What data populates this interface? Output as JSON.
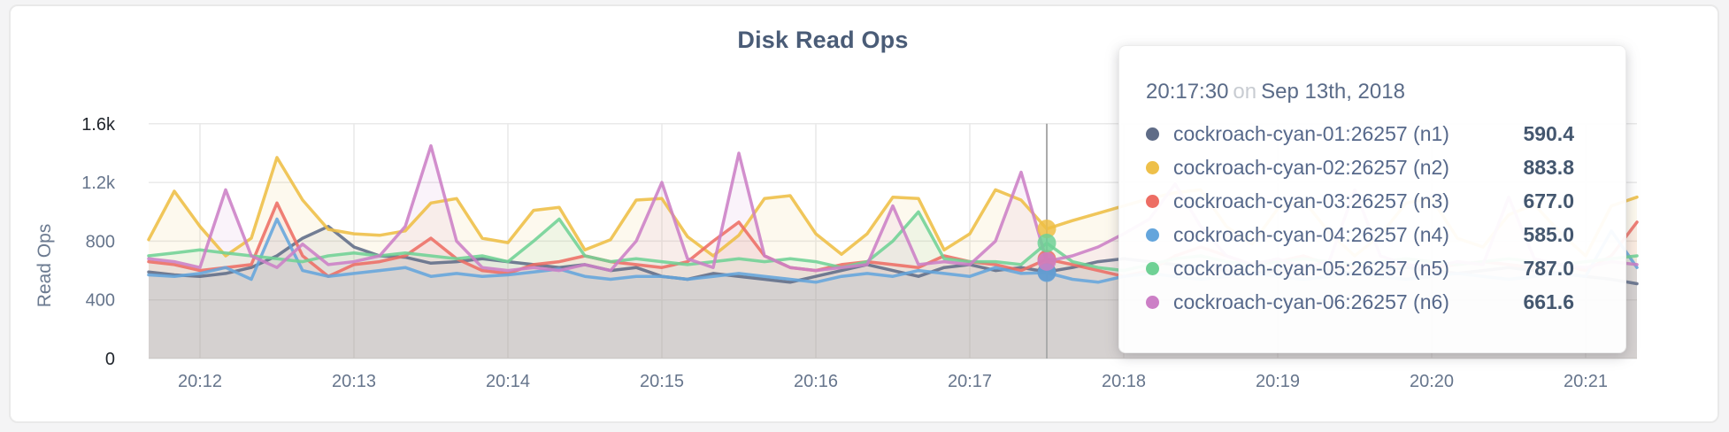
{
  "page": {
    "background": "#F4F4F5"
  },
  "card": {
    "background": "#FFFFFF",
    "border_color": "#E9E9E9"
  },
  "title": "Disk Read Ops",
  "tooltip": {
    "time": "20:17:30",
    "separator": "on",
    "date": "Sep 13th, 2018",
    "rows": [
      {
        "label": "cockroach-cyan-01:26257 (n1)",
        "value": "590.4",
        "color": "#5F6C87"
      },
      {
        "label": "cockroach-cyan-02:26257 (n2)",
        "value": "883.8",
        "color": "#EEC04A"
      },
      {
        "label": "cockroach-cyan-03:26257 (n3)",
        "value": "677.0",
        "color": "#ED6D64"
      },
      {
        "label": "cockroach-cyan-04:26257 (n4)",
        "value": "585.0",
        "color": "#64A5DC"
      },
      {
        "label": "cockroach-cyan-05:26257 (n5)",
        "value": "787.0",
        "color": "#6FD195"
      },
      {
        "label": "cockroach-cyan-06:26257 (n6)",
        "value": "661.6",
        "color": "#CC7FC6"
      }
    ]
  },
  "chart_data": {
    "type": "line",
    "title": "Disk Read Ops",
    "xlabel": "",
    "ylabel": "Read Ops",
    "ylim": [
      0,
      1600
    ],
    "grid": true,
    "x_start_time": "20:11:40",
    "x_step_seconds": 10,
    "x_ticks": [
      {
        "label": "20:12",
        "index": 2
      },
      {
        "label": "20:13",
        "index": 8
      },
      {
        "label": "20:14",
        "index": 14
      },
      {
        "label": "20:15",
        "index": 20
      },
      {
        "label": "20:16",
        "index": 26
      },
      {
        "label": "20:17",
        "index": 32
      },
      {
        "label": "20:18",
        "index": 38
      },
      {
        "label": "20:19",
        "index": 44
      },
      {
        "label": "20:20",
        "index": 50
      },
      {
        "label": "20:21",
        "index": 56
      }
    ],
    "y_ticks": [
      {
        "label": "0",
        "value": 0,
        "strong": true
      },
      {
        "label": "400",
        "value": 400,
        "strong": false
      },
      {
        "label": "800",
        "value": 800,
        "strong": false
      },
      {
        "label": "1.2k",
        "value": 1200,
        "strong": false
      },
      {
        "label": "1.6k",
        "value": 1600,
        "strong": true
      }
    ],
    "crosshair": {
      "index": 35,
      "time": "20:17:30",
      "color": "#ABABAB"
    },
    "tick_color": "#66758C",
    "tick_strong_color": "#20252C",
    "gridline_color": "#E9E9E9",
    "series": [
      {
        "name": "cockroach-cyan-01:26257 (n1)",
        "color": "#5F6C87",
        "values": [
          590,
          570,
          560,
          580,
          620,
          700,
          820,
          900,
          760,
          700,
          690,
          650,
          660,
          680,
          660,
          640,
          620,
          640,
          600,
          620,
          560,
          540,
          580,
          560,
          540,
          520,
          560,
          600,
          640,
          600,
          560,
          620,
          640,
          600,
          620,
          590.4,
          620,
          660,
          680,
          660,
          640,
          620,
          600,
          580,
          600,
          620,
          600,
          580,
          600,
          620,
          600,
          580,
          600,
          620,
          600,
          580,
          560,
          540,
          510
        ]
      },
      {
        "name": "cockroach-cyan-02:26257 (n2)",
        "color": "#EEBE44",
        "values": [
          810,
          1140,
          900,
          700,
          820,
          1370,
          1080,
          880,
          850,
          840,
          870,
          1060,
          1090,
          820,
          790,
          1010,
          1030,
          740,
          810,
          1080,
          1090,
          830,
          700,
          840,
          1090,
          1110,
          850,
          710,
          850,
          1100,
          1090,
          740,
          850,
          1150,
          1080,
          883.8,
          940,
          990,
          1040,
          1090,
          1130,
          1150,
          900,
          780,
          1020,
          1080,
          860,
          700,
          840,
          1060,
          1090,
          820,
          760,
          980,
          1050,
          860,
          700,
          1040,
          1100
        ]
      },
      {
        "name": "cockroach-cyan-03:26257 (n3)",
        "color": "#ED6D64",
        "values": [
          660,
          640,
          600,
          620,
          640,
          1060,
          700,
          560,
          640,
          660,
          700,
          820,
          680,
          600,
          580,
          640,
          660,
          700,
          660,
          640,
          620,
          660,
          800,
          930,
          700,
          620,
          600,
          640,
          660,
          640,
          620,
          700,
          660,
          640,
          600,
          677,
          640,
          600,
          560,
          600,
          700,
          760,
          700,
          640,
          660,
          700,
          640,
          620,
          660,
          640,
          620,
          640,
          660,
          640,
          620,
          640,
          600,
          700,
          930
        ]
      },
      {
        "name": "cockroach-cyan-04:26257 (n4)",
        "color": "#64A5DC",
        "values": [
          570,
          560,
          580,
          620,
          540,
          950,
          600,
          560,
          580,
          600,
          620,
          560,
          580,
          560,
          570,
          590,
          610,
          560,
          540,
          560,
          560,
          540,
          560,
          580,
          560,
          540,
          520,
          560,
          580,
          560,
          600,
          580,
          560,
          620,
          580,
          585,
          540,
          520,
          560,
          580,
          560,
          540,
          560,
          580,
          560,
          540,
          560,
          580,
          560,
          540,
          560,
          580,
          560,
          540,
          560,
          580,
          560,
          870,
          620
        ]
      },
      {
        "name": "cockroach-cyan-05:26257 (n5)",
        "color": "#6FD195",
        "values": [
          700,
          720,
          740,
          720,
          700,
          680,
          660,
          700,
          720,
          700,
          720,
          700,
          680,
          700,
          660,
          800,
          950,
          700,
          660,
          680,
          660,
          640,
          660,
          680,
          660,
          680,
          660,
          620,
          660,
          800,
          1000,
          680,
          660,
          660,
          640,
          787,
          660,
          620,
          600,
          640,
          680,
          700,
          660,
          640,
          660,
          680,
          660,
          640,
          660,
          680,
          660,
          640,
          660,
          680,
          660,
          640,
          660,
          680,
          700
        ]
      },
      {
        "name": "cockroach-cyan-06:26257 (n6)",
        "color": "#CC7FC6",
        "values": [
          680,
          660,
          620,
          1150,
          700,
          620,
          780,
          640,
          660,
          700,
          900,
          1450,
          800,
          620,
          600,
          620,
          600,
          640,
          600,
          800,
          1200,
          680,
          620,
          1400,
          700,
          620,
          600,
          620,
          640,
          1040,
          640,
          660,
          640,
          800,
          1270,
          661.6,
          700,
          760,
          850,
          950,
          1190,
          900,
          700,
          640,
          680,
          620,
          660,
          1150,
          700,
          640,
          620,
          660,
          640,
          1100,
          680,
          640,
          620,
          660,
          640
        ]
      }
    ]
  }
}
